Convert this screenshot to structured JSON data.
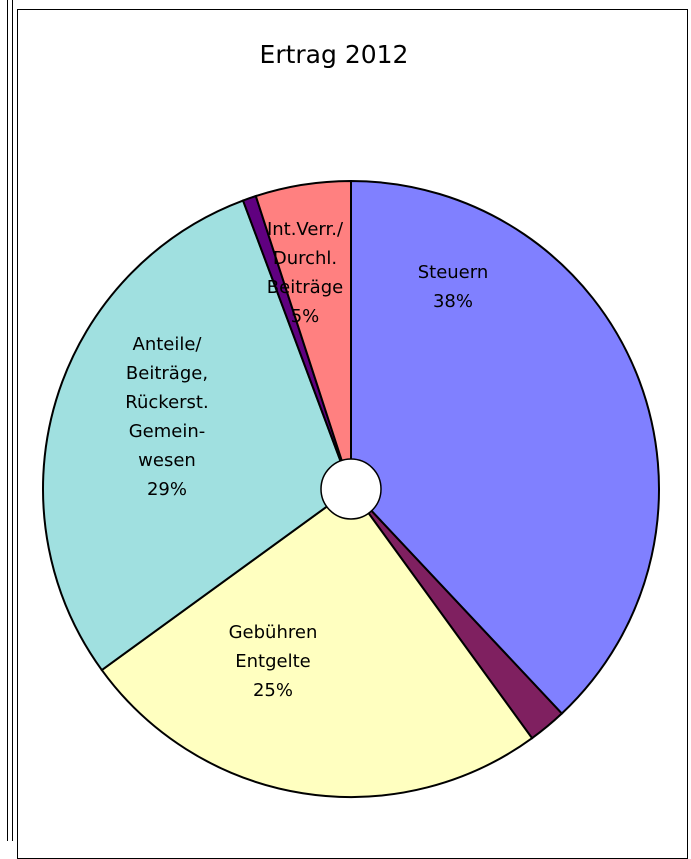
{
  "chart_data": {
    "type": "pie",
    "title": "Ertrag 2012",
    "start_angle_deg": 0,
    "direction": "clockwise",
    "donut_hole": true,
    "slices": [
      {
        "label": "Steuern",
        "lines": [
          "Steuern",
          "38%"
        ],
        "value": 38.0,
        "color": "#8080ff",
        "show_label": true
      },
      {
        "label": "",
        "lines": [],
        "value": 2.0,
        "color": "#7f2060",
        "show_label": false
      },
      {
        "label": "Gebühren Entgelte",
        "lines": [
          "Gebühren",
          "Entgelte",
          "25%"
        ],
        "value": 25.0,
        "color": "#ffffc0",
        "show_label": true
      },
      {
        "label": "Anteile/ Beiträge, Rückerst. Gemeinwesen",
        "lines": [
          "Anteile/",
          "Beiträge,",
          "Rückerst.",
          "Gemein-",
          "wesen",
          "29%"
        ],
        "value": 29.3,
        "color": "#a0e0e0",
        "show_label": true
      },
      {
        "label": "",
        "lines": [],
        "value": 0.7,
        "color": "#600080",
        "show_label": false
      },
      {
        "label": "Int.Verr./ Durchl. Beiträge",
        "lines": [
          "Int.Verr./",
          "Durchl.",
          "Beiträge",
          "5%"
        ],
        "value": 5.0,
        "color": "#ff8080",
        "show_label": true
      }
    ]
  }
}
